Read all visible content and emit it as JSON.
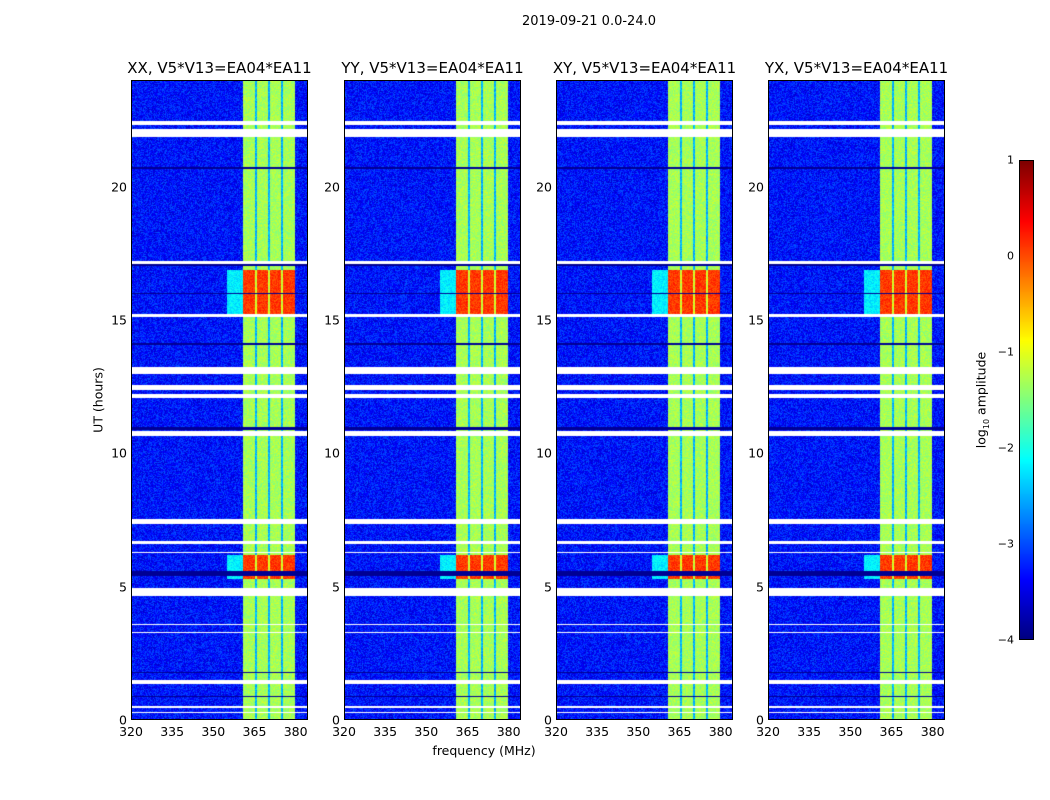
{
  "chart_data": {
    "type": "heatmap",
    "title": "2019-09-21 0.0-24.0",
    "xlabel": "frequency (MHz)",
    "ylabel": "UT (hours)",
    "xlim": [
      320,
      384.5
    ],
    "ylim": [
      0,
      24
    ],
    "xticks": [
      "320",
      "335",
      "350",
      "365",
      "380"
    ],
    "xtick_values": [
      320,
      335,
      350,
      365,
      380
    ],
    "yticks": [
      "0",
      "5",
      "10",
      "15",
      "20"
    ],
    "ytick_values": [
      0,
      5,
      10,
      15,
      20
    ],
    "panels": [
      {
        "title": "XX, V5*V13=EA04*EA11"
      },
      {
        "title": "YY, V5*V13=EA04*EA11"
      },
      {
        "title": "XY, V5*V13=EA04*EA11"
      },
      {
        "title": "YX, V5*V13=EA04*EA11"
      }
    ],
    "colorbar": {
      "label": "log10 amplitude",
      "label_main": "log",
      "label_sub": "10",
      "label_rest": " amplitude",
      "range": [
        -4,
        1
      ],
      "ticks": [
        "1",
        "0",
        "−1",
        "−2",
        "−3",
        "−4"
      ],
      "tick_values": [
        1,
        0,
        -1,
        -2,
        -3,
        -4
      ],
      "colormap": "jet"
    },
    "background_log_amplitude": -3.3,
    "signal_band_mhz": [
      360.7,
      380
    ],
    "signal_subband_gaps_mhz": [
      365.4,
      370.2,
      375.0
    ],
    "signal_log_amplitude": -1.3,
    "high_amplitude_hours": [
      [
        15.2,
        16.9
      ],
      [
        5.3,
        6.2
      ]
    ],
    "high_log_amplitude": 0.1,
    "flagged_hours": [
      [
        22.35,
        22.5
      ],
      [
        21.9,
        22.2
      ],
      [
        17.15,
        17.25
      ],
      [
        15.15,
        15.25
      ],
      [
        13.0,
        13.25
      ],
      [
        12.4,
        12.6
      ],
      [
        12.1,
        12.25
      ],
      [
        10.65,
        10.85
      ],
      [
        7.35,
        7.55
      ],
      [
        6.6,
        6.7
      ],
      [
        6.25,
        6.3
      ],
      [
        4.65,
        4.95
      ],
      [
        3.55,
        3.6
      ],
      [
        3.25,
        3.3
      ],
      [
        1.35,
        1.5
      ],
      [
        0.45,
        0.5
      ],
      [
        0.25,
        0.3
      ]
    ],
    "low_hours": [
      [
        20.7,
        20.8
      ],
      [
        17.05,
        17.12
      ],
      [
        16.0,
        16.05
      ],
      [
        14.1,
        14.15
      ],
      [
        10.9,
        11.0
      ],
      [
        5.4,
        5.6
      ],
      [
        1.75,
        1.8
      ],
      [
        0.85,
        0.9
      ]
    ]
  }
}
